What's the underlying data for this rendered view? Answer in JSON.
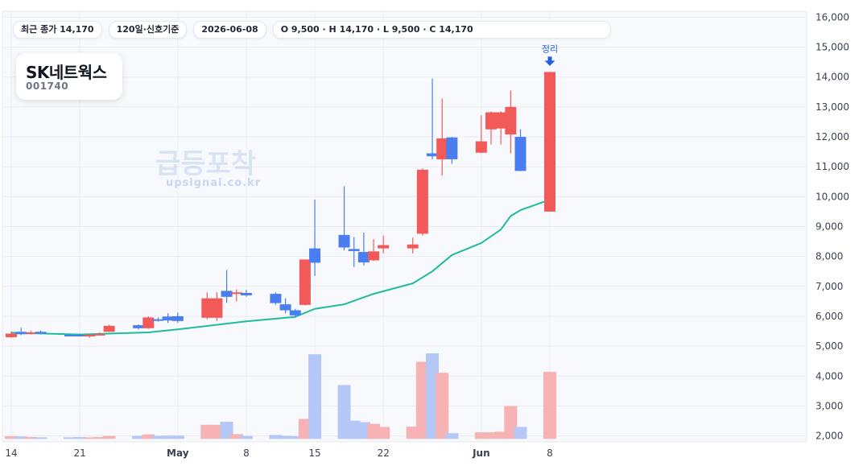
{
  "header": {
    "close_label": "최근 종가 14,170",
    "period_label": "120일·신호기준",
    "date_label": "2026-06-08",
    "ohlc_label": "O 9,500 · H 14,170 · L 9,500 · C 14,170"
  },
  "stock": {
    "name": "SK네트웍스",
    "code": "001740"
  },
  "watermark": {
    "title": "급등포착",
    "site": "upsignal.co.kr"
  },
  "colors": {
    "up": "#f25a5a",
    "down": "#4a7ef0",
    "ma": "#1ebc9c",
    "up_volume": "#f7b3b3",
    "down_volume": "#b4c7f7",
    "marker": "#2462d8"
  },
  "chart_data": {
    "type": "candlestick",
    "ylim": [
      1800,
      16200
    ],
    "y_ticks": [
      2000,
      3000,
      4000,
      5000,
      6000,
      7000,
      8000,
      9000,
      10000,
      11000,
      12000,
      13000,
      14000,
      15000,
      16000
    ],
    "x_tick_labels": [
      {
        "text": "14",
        "date": "2026-04-14",
        "bold": false
      },
      {
        "text": "21",
        "date": "2026-04-21",
        "bold": false
      },
      {
        "text": "May",
        "date": "2026-05-01",
        "bold": true
      },
      {
        "text": "8",
        "date": "2026-05-08",
        "bold": false
      },
      {
        "text": "15",
        "date": "2026-05-15",
        "bold": false
      },
      {
        "text": "22",
        "date": "2026-05-22",
        "bold": false
      },
      {
        "text": "Jun",
        "date": "2026-06-01",
        "bold": true
      },
      {
        "text": "8",
        "date": "2026-06-08",
        "bold": false
      }
    ],
    "volume_base": 1900,
    "candles": [
      {
        "date": "2026-04-14",
        "o": 5300,
        "h": 5500,
        "l": 5280,
        "c": 5420
      },
      {
        "date": "2026-04-15",
        "o": 5480,
        "h": 5620,
        "l": 5370,
        "c": 5400
      },
      {
        "date": "2026-04-16",
        "o": 5430,
        "h": 5520,
        "l": 5390,
        "c": 5460
      },
      {
        "date": "2026-04-17",
        "o": 5480,
        "h": 5520,
        "l": 5400,
        "c": 5420
      },
      {
        "date": "2026-04-20",
        "o": 5380,
        "h": 5420,
        "l": 5340,
        "c": 5360
      },
      {
        "date": "2026-04-21",
        "o": 5380,
        "h": 5420,
        "l": 5340,
        "c": 5360
      },
      {
        "date": "2026-04-22",
        "o": 5330,
        "h": 5410,
        "l": 5280,
        "c": 5380
      },
      {
        "date": "2026-04-23",
        "o": 5390,
        "h": 5460,
        "l": 5360,
        "c": 5410
      },
      {
        "date": "2026-04-24",
        "o": 5480,
        "h": 5720,
        "l": 5480,
        "c": 5680
      },
      {
        "date": "2026-04-27",
        "o": 5700,
        "h": 5730,
        "l": 5560,
        "c": 5600
      },
      {
        "date": "2026-04-28",
        "o": 5600,
        "h": 6000,
        "l": 5580,
        "c": 5960
      },
      {
        "date": "2026-04-29",
        "o": 5900,
        "h": 5960,
        "l": 5820,
        "c": 5880
      },
      {
        "date": "2026-04-30",
        "o": 5990,
        "h": 6100,
        "l": 5780,
        "c": 5860
      },
      {
        "date": "2026-05-01",
        "o": 6000,
        "h": 6120,
        "l": 5780,
        "c": 5840
      },
      {
        "date": "2026-05-04",
        "o": 5950,
        "h": 6800,
        "l": 5900,
        "c": 6600
      },
      {
        "date": "2026-05-05",
        "o": 5950,
        "h": 6800,
        "l": 5850,
        "c": 6600
      },
      {
        "date": "2026-05-06",
        "o": 6850,
        "h": 7550,
        "l": 6450,
        "c": 6650
      },
      {
        "date": "2026-05-07",
        "o": 6800,
        "h": 6900,
        "l": 6500,
        "c": 6800
      },
      {
        "date": "2026-05-08",
        "o": 6780,
        "h": 6880,
        "l": 6650,
        "c": 6700
      },
      {
        "date": "2026-05-11",
        "o": 6750,
        "h": 6800,
        "l": 6380,
        "c": 6440
      },
      {
        "date": "2026-05-12",
        "o": 6400,
        "h": 6600,
        "l": 6100,
        "c": 6200
      },
      {
        "date": "2026-05-13",
        "o": 6200,
        "h": 6250,
        "l": 5950,
        "c": 6030
      },
      {
        "date": "2026-05-14",
        "o": 6380,
        "h": 7900,
        "l": 6360,
        "c": 7900
      },
      {
        "date": "2026-05-15",
        "o": 8270,
        "h": 9900,
        "l": 7350,
        "c": 7790
      },
      {
        "date": "2026-05-18",
        "o": 8720,
        "h": 10350,
        "l": 8200,
        "c": 8300
      },
      {
        "date": "2026-05-19",
        "o": 8250,
        "h": 8650,
        "l": 7650,
        "c": 8180
      },
      {
        "date": "2026-05-20",
        "o": 8150,
        "h": 8800,
        "l": 7700,
        "c": 7800
      },
      {
        "date": "2026-05-21",
        "o": 7870,
        "h": 8580,
        "l": 7850,
        "c": 8170
      },
      {
        "date": "2026-05-22",
        "o": 8270,
        "h": 8700,
        "l": 8100,
        "c": 8380
      },
      {
        "date": "2026-05-25",
        "o": 8270,
        "h": 8630,
        "l": 8100,
        "c": 8400
      },
      {
        "date": "2026-05-26",
        "o": 8760,
        "h": 10950,
        "l": 8700,
        "c": 10900
      },
      {
        "date": "2026-05-27",
        "o": 11450,
        "h": 13950,
        "l": 11250,
        "c": 11350
      },
      {
        "date": "2026-05-28",
        "o": 11250,
        "h": 13280,
        "l": 10700,
        "c": 11950
      },
      {
        "date": "2026-05-29",
        "o": 11980,
        "h": 12000,
        "l": 11100,
        "c": 11250
      },
      {
        "date": "2026-06-01",
        "o": 11470,
        "h": 12720,
        "l": 11450,
        "c": 11850
      },
      {
        "date": "2026-06-02",
        "o": 12250,
        "h": 12850,
        "l": 11750,
        "c": 12820
      },
      {
        "date": "2026-06-03",
        "o": 12280,
        "h": 12850,
        "l": 11750,
        "c": 12820
      },
      {
        "date": "2026-06-04",
        "o": 12080,
        "h": 13550,
        "l": 11450,
        "c": 13000
      },
      {
        "date": "2026-06-05",
        "o": 12000,
        "h": 12250,
        "l": 10850,
        "c": 10860
      },
      {
        "date": "2026-06-08",
        "o": 9500,
        "h": 14170,
        "l": 9500,
        "c": 14170
      }
    ],
    "volumes": [
      1990,
      1980,
      1960,
      1950,
      1950,
      1960,
      1950,
      1960,
      2000,
      2000,
      2050,
      2000,
      2010,
      2010,
      2370,
      2370,
      2470,
      2060,
      2000,
      2030,
      2000,
      1990,
      2570,
      4730,
      3700,
      2510,
      2460,
      2400,
      2300,
      2310,
      4480,
      4760,
      4110,
      2090,
      2120,
      2120,
      2140,
      3000,
      2300,
      4140
    ],
    "ma_series": [
      {
        "date": "2026-04-14",
        "value": 5450
      },
      {
        "date": "2026-04-21",
        "value": 5390
      },
      {
        "date": "2026-04-28",
        "value": 5460
      },
      {
        "date": "2026-05-01",
        "value": 5560
      },
      {
        "date": "2026-05-08",
        "value": 5830
      },
      {
        "date": "2026-05-13",
        "value": 5980
      },
      {
        "date": "2026-05-15",
        "value": 6250
      },
      {
        "date": "2026-05-18",
        "value": 6400
      },
      {
        "date": "2026-05-21",
        "value": 6750
      },
      {
        "date": "2026-05-25",
        "value": 7100
      },
      {
        "date": "2026-05-27",
        "value": 7500
      },
      {
        "date": "2026-05-29",
        "value": 8050
      },
      {
        "date": "2026-06-01",
        "value": 8450
      },
      {
        "date": "2026-06-03",
        "value": 8900
      },
      {
        "date": "2026-06-04",
        "value": 9350
      },
      {
        "date": "2026-06-05",
        "value": 9550
      },
      {
        "date": "2026-06-08",
        "value": 9900
      }
    ],
    "annotation": {
      "date": "2026-06-08",
      "text": "정리"
    }
  }
}
